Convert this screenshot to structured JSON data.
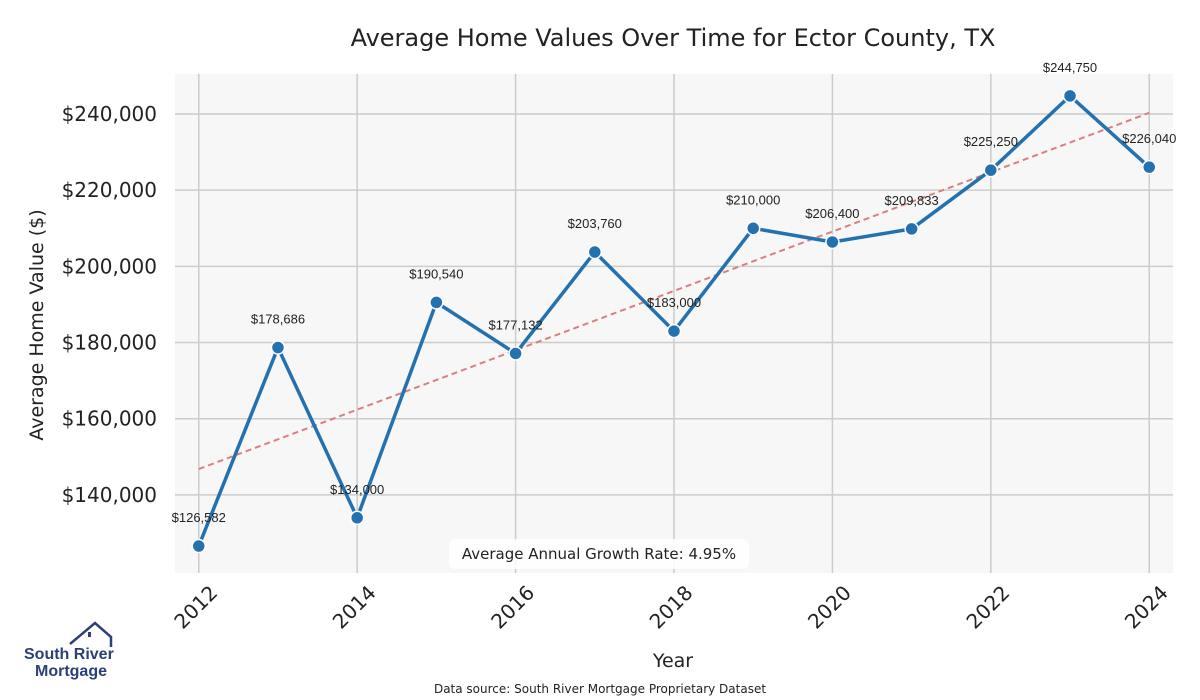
{
  "chart_data": {
    "type": "line",
    "title": "Average Home Values Over Time for Ector County, TX",
    "xlabel": "Year",
    "ylabel": "Average Home Value ($)",
    "x": [
      2012,
      2013,
      2014,
      2015,
      2016,
      2017,
      2018,
      2019,
      2020,
      2021,
      2022,
      2023,
      2024
    ],
    "series": [
      {
        "values": [
          126582,
          178686,
          134000,
          190540,
          177132,
          203760,
          183000,
          210000,
          206400,
          209833,
          225250,
          244750,
          226040
        ],
        "labels": [
          "$126,582",
          "$178,686",
          "$134,000",
          "$190,540",
          "$177,132",
          "$203,760",
          "$183,000",
          "$210,000",
          "$206,400",
          "$209,833",
          "$225,250",
          "$244,750",
          "$226,040"
        ],
        "color": "#2471b0"
      }
    ],
    "trend_line": {
      "start": 146800,
      "end": 240300,
      "color": "#d9807f",
      "style": "dashed"
    },
    "xticks": [
      2012,
      2014,
      2016,
      2018,
      2020,
      2022,
      2024
    ],
    "xtick_labels": [
      "2012",
      "2014",
      "2016",
      "2018",
      "2020",
      "2022",
      "2024"
    ],
    "yticks": [
      140000,
      160000,
      180000,
      200000,
      220000,
      240000
    ],
    "ytick_labels": [
      "$140,000",
      "$160,000",
      "$180,000",
      "$200,000",
      "$220,000",
      "$240,000"
    ],
    "xlim": [
      2011.7,
      2024.3
    ],
    "ylim": [
      119500,
      250500
    ],
    "grid": true,
    "annotation": "Average Annual Growth Rate: 4.95%",
    "colors": {
      "plot_bg": "#f7f7f7",
      "grid": "#cccccc",
      "line": "#2471b0",
      "trend": "#d9807f"
    }
  },
  "logo": {
    "line1": "South River",
    "line2": "Mortgage",
    "color": "#2b3f78"
  },
  "footer": {
    "source": "Data source: South River Mortgage Proprietary Dataset"
  }
}
